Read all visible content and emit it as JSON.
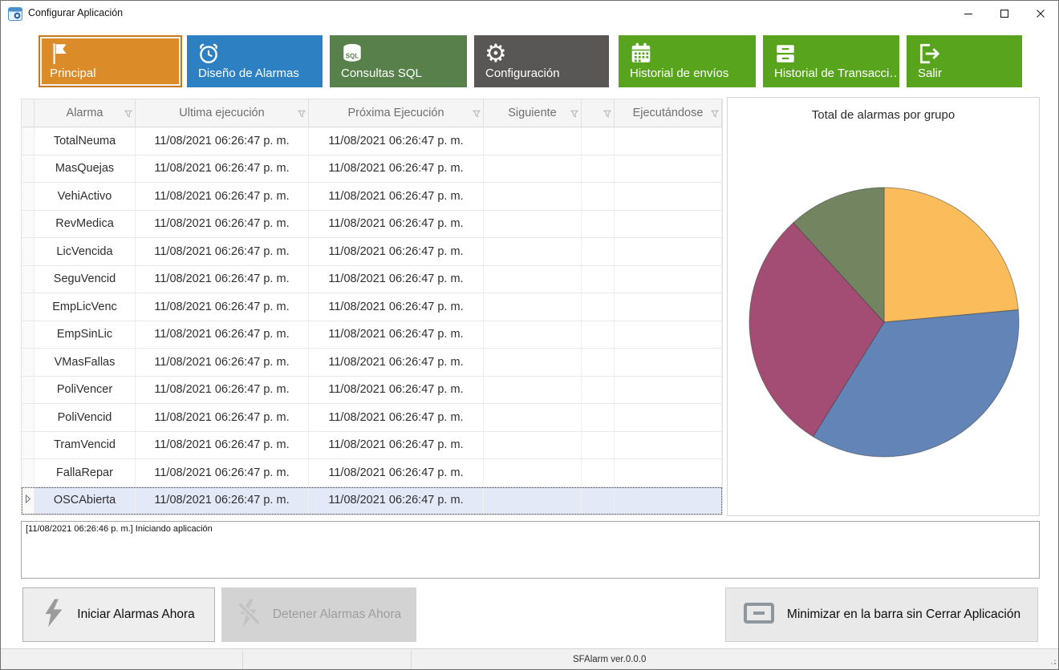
{
  "window": {
    "title": "Configurar Aplicación",
    "controls": [
      "minimize",
      "maximize",
      "close"
    ]
  },
  "toolbar": {
    "buttons": [
      {
        "id": "principal",
        "label": "Principal",
        "icon": "flag-icon",
        "color": "#db8b28",
        "selected": true
      },
      {
        "id": "diseno-alarmas",
        "label": "Diseño de Alarmas",
        "icon": "alarm-clock-icon",
        "color": "#2d80c2",
        "selected": false
      },
      {
        "id": "consultas-sql",
        "label": "Consultas SQL",
        "icon": "sql-database-icon",
        "color": "#57804b",
        "selected": false
      },
      {
        "id": "configuracion",
        "label": "Configuración",
        "icon": "gear-icon",
        "color": "#585755",
        "selected": false
      },
      {
        "id": "historial-envios",
        "label": "Historial de envíos",
        "icon": "calendar-icon",
        "color": "#58a51d",
        "selected": false
      },
      {
        "id": "historial-transacciones",
        "label": "Historial de Transacci…",
        "icon": "drawers-icon",
        "color": "#58a51d",
        "selected": false
      },
      {
        "id": "salir",
        "label": "Salir",
        "icon": "exit-icon",
        "color": "#58a51d",
        "selected": false
      }
    ]
  },
  "grid": {
    "columns": [
      "Alarma",
      "Ultima ejecución",
      "Próxima Ejecución",
      "Siguiente",
      "",
      "Ejecutándose"
    ],
    "selected_alarm": "OSCAbierta",
    "rows": [
      {
        "alarma": "TotalNeuma",
        "ultima_ejecucion": "11/08/2021 06:26:47 p. m.",
        "proxima_ejecucion": "11/08/2021 06:26:47 p. m.",
        "siguiente": "",
        "ejecutandose": ""
      },
      {
        "alarma": "MasQuejas",
        "ultima_ejecucion": "11/08/2021 06:26:47 p. m.",
        "proxima_ejecucion": "11/08/2021 06:26:47 p. m.",
        "siguiente": "",
        "ejecutandose": ""
      },
      {
        "alarma": "VehiActivo",
        "ultima_ejecucion": "11/08/2021 06:26:47 p. m.",
        "proxima_ejecucion": "11/08/2021 06:26:47 p. m.",
        "siguiente": "",
        "ejecutandose": ""
      },
      {
        "alarma": "RevMedica",
        "ultima_ejecucion": "11/08/2021 06:26:47 p. m.",
        "proxima_ejecucion": "11/08/2021 06:26:47 p. m.",
        "siguiente": "",
        "ejecutandose": ""
      },
      {
        "alarma": "LicVencida",
        "ultima_ejecucion": "11/08/2021 06:26:47 p. m.",
        "proxima_ejecucion": "11/08/2021 06:26:47 p. m.",
        "siguiente": "",
        "ejecutandose": ""
      },
      {
        "alarma": "SeguVencid",
        "ultima_ejecucion": "11/08/2021 06:26:47 p. m.",
        "proxima_ejecucion": "11/08/2021 06:26:47 p. m.",
        "siguiente": "",
        "ejecutandose": ""
      },
      {
        "alarma": "EmpLicVenc",
        "ultima_ejecucion": "11/08/2021 06:26:47 p. m.",
        "proxima_ejecucion": "11/08/2021 06:26:47 p. m.",
        "siguiente": "",
        "ejecutandose": ""
      },
      {
        "alarma": "EmpSinLic",
        "ultima_ejecucion": "11/08/2021 06:26:47 p. m.",
        "proxima_ejecucion": "11/08/2021 06:26:47 p. m.",
        "siguiente": "",
        "ejecutandose": ""
      },
      {
        "alarma": "VMasFallas",
        "ultima_ejecucion": "11/08/2021 06:26:47 p. m.",
        "proxima_ejecucion": "11/08/2021 06:26:47 p. m.",
        "siguiente": "",
        "ejecutandose": ""
      },
      {
        "alarma": "PoliVencer",
        "ultima_ejecucion": "11/08/2021 06:26:47 p. m.",
        "proxima_ejecucion": "11/08/2021 06:26:47 p. m.",
        "siguiente": "",
        "ejecutandose": ""
      },
      {
        "alarma": "PoliVencid",
        "ultima_ejecucion": "11/08/2021 06:26:47 p. m.",
        "proxima_ejecucion": "11/08/2021 06:26:47 p. m.",
        "siguiente": "",
        "ejecutandose": ""
      },
      {
        "alarma": "TramVencid",
        "ultima_ejecucion": "11/08/2021 06:26:47 p. m.",
        "proxima_ejecucion": "11/08/2021 06:26:47 p. m.",
        "siguiente": "",
        "ejecutandose": ""
      },
      {
        "alarma": "FallaRepar",
        "ultima_ejecucion": "11/08/2021 06:26:47 p. m.",
        "proxima_ejecucion": "11/08/2021 06:26:47 p. m.",
        "siguiente": "",
        "ejecutandose": ""
      },
      {
        "alarma": "OSCAbierta",
        "ultima_ejecucion": "11/08/2021 06:26:47 p. m.",
        "proxima_ejecucion": "11/08/2021 06:26:47 p. m.",
        "siguiente": "",
        "ejecutandose": ""
      }
    ]
  },
  "chart_data": {
    "type": "pie",
    "title": "Total de alarmas por grupo",
    "values": [
      4,
      6,
      5,
      2
    ],
    "colors": [
      "#fbbd5c",
      "#6284b7",
      "#a34d75",
      "#728460"
    ],
    "start_angle_deg": -90,
    "direction": "clockwise",
    "legend": false,
    "labels_shown": false
  },
  "log": {
    "lines": [
      "[11/08/2021 06:26:46 p. m.] Iniciando aplicación"
    ]
  },
  "actions": {
    "iniciar_label": "Iniciar Alarmas Ahora",
    "detener_label": "Detener Alarmas Ahora",
    "detener_enabled": false,
    "minimizar_label": "Minimizar en la barra sin Cerrar Aplicación"
  },
  "statusbar": {
    "version_text": "SFAlarm ver.0.0.0"
  }
}
